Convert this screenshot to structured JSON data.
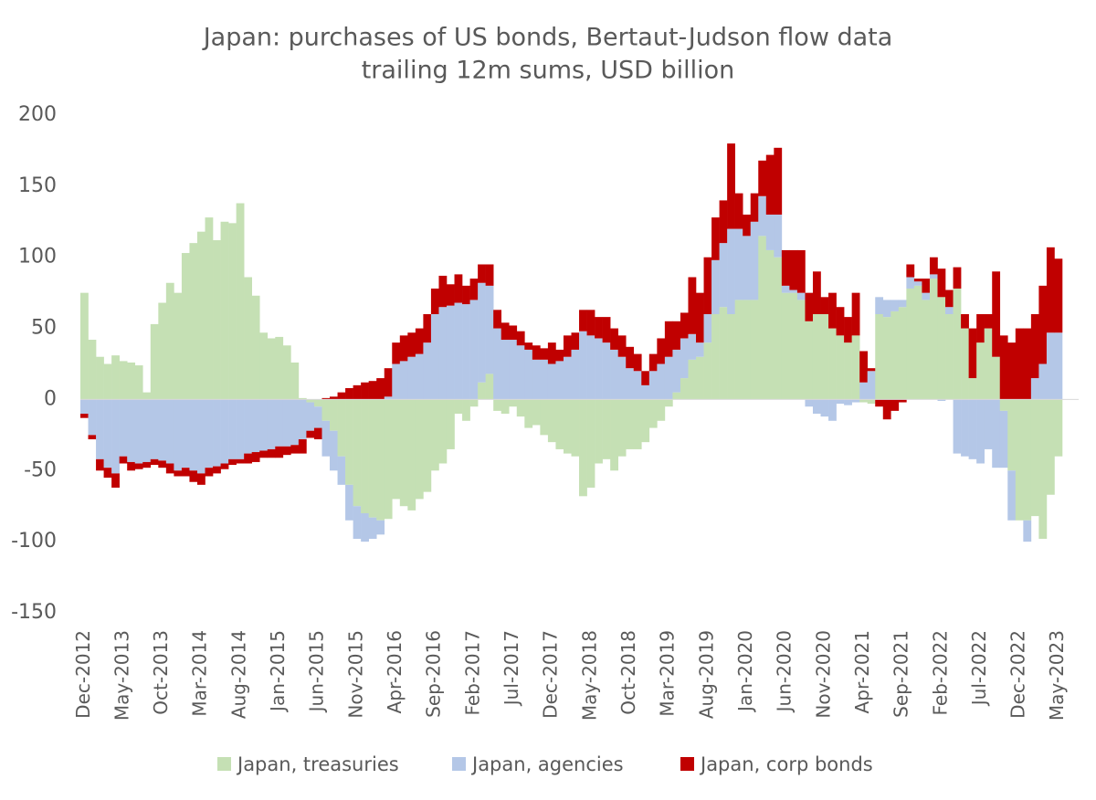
{
  "chart_data": {
    "type": "bar",
    "stacked": true,
    "title": "Japan: purchases of US bonds, Bertaut-Judson flow data",
    "subtitle": "trailing 12m sums, USD billion",
    "categories": [
      "Dec-2012",
      null,
      null,
      null,
      null,
      "May-2013",
      null,
      null,
      null,
      null,
      "Oct-2013",
      null,
      null,
      null,
      null,
      "Mar-2014",
      null,
      null,
      null,
      null,
      "Aug-2014",
      null,
      null,
      null,
      null,
      "Jan-2015",
      null,
      null,
      null,
      null,
      "Jun-2015",
      null,
      null,
      null,
      null,
      "Nov-2015",
      null,
      null,
      null,
      null,
      "Apr-2016",
      null,
      null,
      null,
      null,
      "Sep-2016",
      null,
      null,
      null,
      null,
      "Feb-2017",
      null,
      null,
      null,
      null,
      "Jul-2017",
      null,
      null,
      null,
      null,
      "Dec-2017",
      null,
      null,
      null,
      null,
      "May-2018",
      null,
      null,
      null,
      null,
      "Oct-2018",
      null,
      null,
      null,
      null,
      "Mar-2019",
      null,
      null,
      null,
      null,
      "Aug-2019",
      null,
      null,
      null,
      null,
      "Jan-2020",
      null,
      null,
      null,
      null,
      "Jun-2020",
      null,
      null,
      null,
      null,
      "Nov-2020",
      null,
      null,
      null,
      null,
      "Apr-2021",
      null,
      null,
      null,
      null,
      "Sep-2021",
      null,
      null,
      null,
      null,
      "Feb-2022",
      null,
      null,
      null,
      null,
      "Jul-2022",
      null,
      null,
      null,
      null,
      "Dec-2022",
      null,
      null,
      null,
      null,
      "May-2023"
    ],
    "series": [
      {
        "name": "Japan, treasuries",
        "color": "#c5e0b4",
        "values": [
          75,
          42,
          30,
          25,
          31,
          27,
          26,
          24,
          5,
          53,
          68,
          82,
          75,
          103,
          110,
          118,
          128,
          112,
          125,
          124,
          138,
          86,
          73,
          47,
          43,
          44,
          38,
          26,
          1,
          -2,
          -5,
          -15,
          -22,
          -40,
          -60,
          -75,
          -80,
          -83,
          -85,
          -84,
          -70,
          -75,
          -78,
          -70,
          -65,
          -50,
          -45,
          -35,
          -10,
          -15,
          -5,
          12,
          18,
          -8,
          -10,
          -5,
          -12,
          -20,
          -18,
          -25,
          -30,
          -35,
          -38,
          -40,
          -68,
          -62,
          -45,
          -42,
          -50,
          -40,
          -35,
          -35,
          -30,
          -20,
          -15,
          -5,
          5,
          15,
          28,
          30,
          40,
          60,
          65,
          60,
          70,
          70,
          70,
          115,
          105,
          100,
          75,
          75,
          70,
          55,
          60,
          60,
          50,
          45,
          40,
          45,
          -2,
          -3,
          60,
          58,
          62,
          65,
          78,
          80,
          70,
          85,
          72,
          60,
          78,
          50,
          15,
          40,
          50,
          30,
          -8,
          -50,
          -85,
          -85,
          -82,
          -98,
          -67,
          -40
        ]
      },
      {
        "name": "Japan, agencies",
        "color": "#b4c7e7",
        "values": [
          -10,
          -25,
          -42,
          -48,
          -52,
          -40,
          -44,
          -45,
          -44,
          -42,
          -43,
          -45,
          -50,
          -48,
          -50,
          -52,
          -48,
          -47,
          -45,
          -42,
          -42,
          -38,
          -37,
          -36,
          -35,
          -33,
          -33,
          -32,
          -28,
          -20,
          -15,
          -25,
          -28,
          -20,
          -25,
          -23,
          -20,
          -15,
          -10,
          2,
          25,
          27,
          30,
          32,
          40,
          60,
          65,
          66,
          68,
          67,
          70,
          70,
          62,
          50,
          42,
          42,
          38,
          35,
          28,
          28,
          25,
          27,
          30,
          35,
          48,
          45,
          43,
          40,
          35,
          30,
          22,
          20,
          10,
          20,
          25,
          30,
          30,
          28,
          18,
          10,
          20,
          38,
          45,
          60,
          50,
          45,
          55,
          28,
          25,
          30,
          5,
          2,
          5,
          -5,
          -10,
          -12,
          -15,
          -3,
          -4,
          -2,
          12,
          20,
          12,
          12,
          8,
          5,
          8,
          3,
          5,
          3,
          -1,
          5,
          -38,
          -40,
          -42,
          -45,
          -35,
          -48,
          -40,
          -35,
          0,
          -15,
          15,
          25,
          47,
          47
        ]
      },
      {
        "name": "Japan, corp bonds",
        "color": "#c00000",
        "values": [
          -3,
          -3,
          -8,
          -7,
          -10,
          -5,
          -6,
          -4,
          -4,
          -4,
          -5,
          -7,
          -4,
          -6,
          -8,
          -8,
          -6,
          -5,
          -4,
          -4,
          -3,
          -7,
          -7,
          -5,
          -6,
          -8,
          -6,
          -6,
          -10,
          -5,
          -8,
          1,
          2,
          5,
          8,
          10,
          12,
          13,
          15,
          20,
          15,
          18,
          17,
          18,
          20,
          18,
          22,
          15,
          20,
          13,
          15,
          13,
          15,
          13,
          12,
          10,
          10,
          5,
          10,
          8,
          15,
          8,
          15,
          12,
          15,
          18,
          15,
          18,
          15,
          15,
          15,
          12,
          10,
          12,
          18,
          25,
          20,
          18,
          40,
          35,
          40,
          30,
          30,
          60,
          25,
          15,
          20,
          25,
          42,
          47,
          25,
          28,
          30,
          20,
          30,
          12,
          25,
          20,
          18,
          30,
          22,
          2,
          -5,
          -14,
          -8,
          -2,
          9,
          2,
          10,
          12,
          20,
          12,
          15,
          10,
          35,
          20,
          10,
          60,
          45,
          40,
          50,
          50,
          45,
          55,
          60,
          52
        ]
      }
    ],
    "ylim": [
      -150,
      200
    ],
    "yticks": [
      -150,
      -100,
      -50,
      0,
      50,
      100,
      150,
      200
    ],
    "grid": false,
    "legend": "bottom"
  }
}
